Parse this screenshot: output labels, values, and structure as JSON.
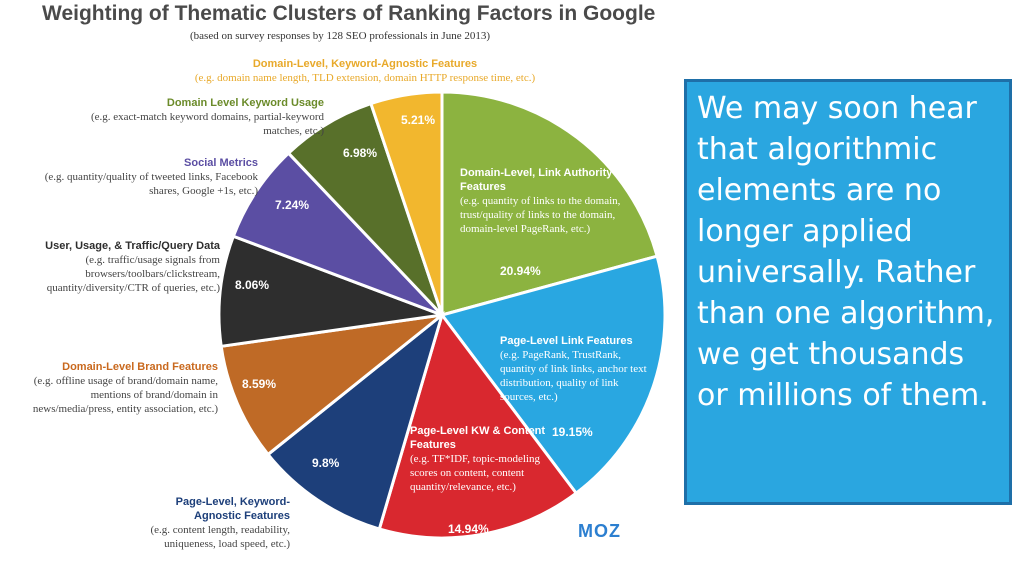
{
  "title": "Weighting of Thematic Clusters of Ranking Factors in Google",
  "subtitle": "(based on survey responses by 128 SEO professionals in June 2013)",
  "logo": "MOZ",
  "callout": "We may soon hear that algorithmic elements are no longer applied universally. Rather than one algorithm, we get thousands or millions of them.",
  "chart_data": {
    "type": "pie",
    "title": "Weighting of Thematic Clusters of Ranking Factors in Google",
    "subtitle": "(based on survey responses by 128 SEO professionals in June 2013)",
    "slices": [
      {
        "name": "Domain-Level, Link Authority Features",
        "desc": "(e.g. quantity of links to the domain, trust/quality of links to the domain, domain-level PageRank, etc.)",
        "value": 20.94,
        "label": "20.94%",
        "color": "#8cb340"
      },
      {
        "name": "Page-Level Link Features",
        "desc": "(e.g. PageRank, TrustRank, quantity of link links, anchor text distribution, quality of link sources, etc.)",
        "value": 19.15,
        "label": "19.15%",
        "color": "#29a7e1"
      },
      {
        "name": "Page-Level KW & Content Features",
        "desc": "(e.g. TF*IDF, topic-modeling scores on content, content quantity/relevance, etc.)",
        "value": 14.94,
        "label": "14.94%",
        "color": "#d9282f"
      },
      {
        "name": "Page-Level, Keyword-Agnostic Features",
        "desc": "(e.g. content length, readability, uniqueness, load speed, etc.)",
        "value": 9.8,
        "label": "9.8%",
        "color": "#1d3f7a"
      },
      {
        "name": "Domain-Level Brand Features",
        "desc": "(e.g. offline usage of brand/domain name, mentions of brand/domain in news/media/press, entity association, etc.)",
        "value": 8.59,
        "label": "8.59%",
        "color": "#bf6a26"
      },
      {
        "name": "User, Usage, & Traffic/Query Data",
        "desc": "(e.g. traffic/usage signals from browsers/toolbars/clickstream, quantity/diversity/CTR of queries, etc.)",
        "value": 8.06,
        "label": "8.06%",
        "color": "#2e2e2e"
      },
      {
        "name": "Social Metrics",
        "desc": "(e.g. quantity/quality of tweeted links, Facebook shares, Google +1s, etc.)",
        "value": 7.24,
        "label": "7.24%",
        "color": "#5b4ea3"
      },
      {
        "name": "Domain Level Keyword Usage",
        "desc": "(e.g. exact-match keyword domains, partial-keyword matches, etc.)",
        "value": 6.98,
        "label": "6.98%",
        "color": "#58702a"
      },
      {
        "name": "Domain-Level, Keyword-Agnostic Features",
        "desc": "(e.g. domain name length, TLD extension, domain HTTP response time, etc.)",
        "value": 5.21,
        "label": "5.21%",
        "color": "#f2b72e"
      }
    ],
    "label_colors": {
      "Domain-Level, Keyword-Agnostic Features": "#e8a92a",
      "Domain Level Keyword Usage": "#6b8b2a",
      "Social Metrics": "#5b4ea3",
      "User, Usage, & Traffic/Query Data": "#2e2e2e",
      "Domain-Level Brand Features": "#c9691e",
      "Page-Level, Keyword-Agnostic Features": "#1d3f7a"
    }
  }
}
